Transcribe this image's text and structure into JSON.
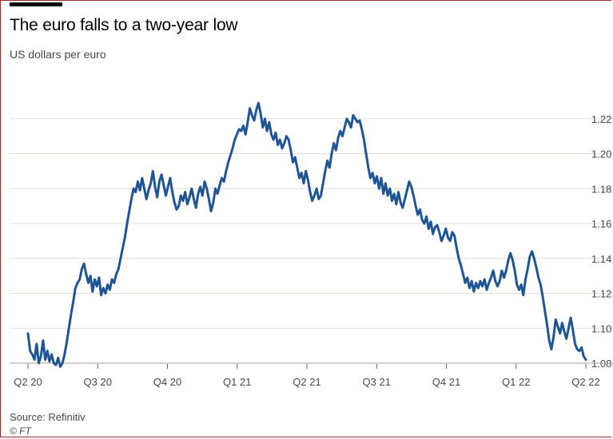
{
  "header": {
    "title": "The euro falls to a two-year low",
    "subtitle": "US dollars per euro"
  },
  "footer": {
    "source": "Source: Refinitiv",
    "credit": "© FT"
  },
  "colors": {
    "line": "#1f5594",
    "grid": "#e3ddd8",
    "axis_text": "#4a4744",
    "frame": "#9c2a2a"
  },
  "chart_data": {
    "type": "line",
    "title": "The euro falls to a two-year low",
    "subtitle": "US dollars per euro",
    "ylim": [
      1.08,
      1.24
    ],
    "y_ticks": [
      1.08,
      1.1,
      1.12,
      1.14,
      1.16,
      1.18,
      1.2,
      1.22
    ],
    "y_tick_labels": [
      "1.08",
      "1.10",
      "1.12",
      "1.14",
      "1.16",
      "1.18",
      "1.20",
      "1.22"
    ],
    "grid": true,
    "x_ticks": [
      "Q2 20",
      "Q3 20",
      "Q4 20",
      "Q1 21",
      "Q2 21",
      "Q3 21",
      "Q4 21",
      "Q1 22",
      "Q2 22"
    ],
    "series": [
      {
        "values": [
          1.097,
          1.087,
          1.085,
          1.082,
          1.091,
          1.08,
          1.084,
          1.093,
          1.082,
          1.087,
          1.081,
          1.085,
          1.08,
          1.079,
          1.083,
          1.078,
          1.08,
          1.085,
          1.092,
          1.1,
          1.108,
          1.115,
          1.123,
          1.126,
          1.128,
          1.134,
          1.137,
          1.131,
          1.126,
          1.13,
          1.121,
          1.128,
          1.124,
          1.129,
          1.119,
          1.123,
          1.12,
          1.125,
          1.122,
          1.128,
          1.126,
          1.131,
          1.134,
          1.14,
          1.146,
          1.152,
          1.16,
          1.167,
          1.174,
          1.18,
          1.178,
          1.184,
          1.179,
          1.186,
          1.18,
          1.174,
          1.179,
          1.183,
          1.19,
          1.181,
          1.175,
          1.184,
          1.188,
          1.182,
          1.176,
          1.181,
          1.186,
          1.178,
          1.172,
          1.168,
          1.17,
          1.176,
          1.173,
          1.178,
          1.171,
          1.175,
          1.18,
          1.174,
          1.169,
          1.177,
          1.181,
          1.176,
          1.184,
          1.18,
          1.174,
          1.167,
          1.172,
          1.18,
          1.177,
          1.182,
          1.186,
          1.184,
          1.19,
          1.195,
          1.199,
          1.203,
          1.208,
          1.211,
          1.214,
          1.213,
          1.216,
          1.211,
          1.218,
          1.226,
          1.222,
          1.219,
          1.225,
          1.229,
          1.223,
          1.215,
          1.22,
          1.213,
          1.218,
          1.211,
          1.208,
          1.212,
          1.205,
          1.208,
          1.203,
          1.206,
          1.21,
          1.208,
          1.202,
          1.195,
          1.198,
          1.192,
          1.186,
          1.189,
          1.183,
          1.19,
          1.185,
          1.178,
          1.173,
          1.176,
          1.18,
          1.174,
          1.176,
          1.183,
          1.19,
          1.196,
          1.192,
          1.2,
          1.206,
          1.202,
          1.209,
          1.213,
          1.21,
          1.215,
          1.22,
          1.218,
          1.215,
          1.222,
          1.22,
          1.218,
          1.219,
          1.214,
          1.208,
          1.2,
          1.192,
          1.186,
          1.189,
          1.183,
          1.187,
          1.18,
          1.186,
          1.177,
          1.183,
          1.176,
          1.18,
          1.173,
          1.177,
          1.171,
          1.178,
          1.172,
          1.169,
          1.174,
          1.179,
          1.184,
          1.181,
          1.176,
          1.17,
          1.165,
          1.168,
          1.162,
          1.16,
          1.164,
          1.157,
          1.161,
          1.154,
          1.158,
          1.159,
          1.155,
          1.15,
          1.153,
          1.157,
          1.152,
          1.15,
          1.155,
          1.153,
          1.146,
          1.14,
          1.136,
          1.131,
          1.126,
          1.129,
          1.123,
          1.127,
          1.121,
          1.126,
          1.123,
          1.127,
          1.124,
          1.128,
          1.122,
          1.126,
          1.129,
          1.133,
          1.127,
          1.124,
          1.127,
          1.133,
          1.129,
          1.133,
          1.139,
          1.143,
          1.139,
          1.133,
          1.125,
          1.122,
          1.125,
          1.119,
          1.128,
          1.134,
          1.141,
          1.144,
          1.14,
          1.135,
          1.129,
          1.125,
          1.118,
          1.11,
          1.102,
          1.093,
          1.088,
          1.095,
          1.105,
          1.101,
          1.097,
          1.103,
          1.098,
          1.094,
          1.1,
          1.106,
          1.099,
          1.091,
          1.088,
          1.087,
          1.089,
          1.084,
          1.082
        ]
      }
    ]
  }
}
